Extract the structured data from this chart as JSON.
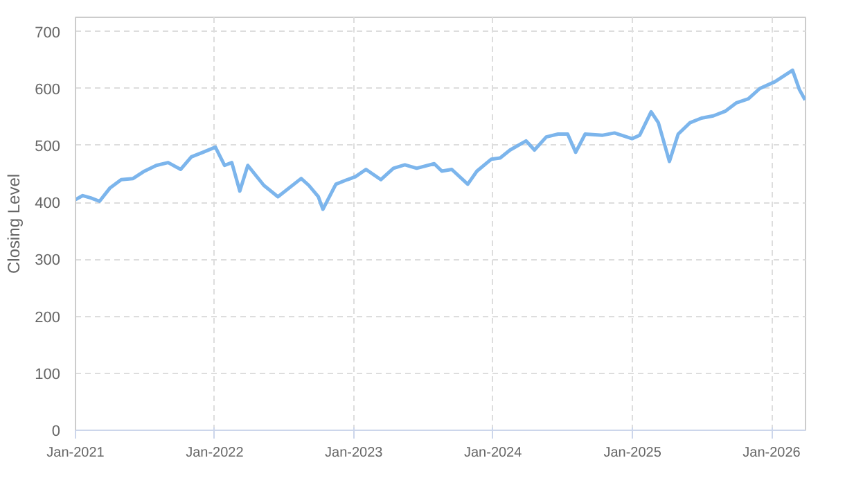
{
  "chart_data": {
    "type": "line",
    "ylabel": "Closing Level",
    "x": [
      "2021-01-01",
      "2021-01-20",
      "2021-02-10",
      "2021-03-05",
      "2021-04-01",
      "2021-05-01",
      "2021-06-01",
      "2021-07-01",
      "2021-08-01",
      "2021-09-01",
      "2021-10-04",
      "2021-11-01",
      "2021-12-01",
      "2022-01-03",
      "2022-01-27",
      "2022-02-15",
      "2022-03-08",
      "2022-03-29",
      "2022-05-10",
      "2022-06-16",
      "2022-08-16",
      "2022-09-05",
      "2022-09-30",
      "2022-10-12",
      "2022-11-15",
      "2022-12-15",
      "2023-01-05",
      "2023-02-02",
      "2023-03-13",
      "2023-04-15",
      "2023-05-15",
      "2023-06-15",
      "2023-07-31",
      "2023-08-20",
      "2023-09-15",
      "2023-10-27",
      "2023-11-20",
      "2023-12-28",
      "2024-01-20",
      "2024-02-15",
      "2024-03-28",
      "2024-04-19",
      "2024-05-20",
      "2024-06-20",
      "2024-07-15",
      "2024-08-05",
      "2024-08-30",
      "2024-10-15",
      "2024-11-15",
      "2024-12-31",
      "2025-01-20",
      "2025-02-19",
      "2025-03-10",
      "2025-04-08",
      "2025-05-01",
      "2025-06-01",
      "2025-07-01",
      "2025-08-01",
      "2025-09-01",
      "2025-10-01",
      "2025-11-01",
      "2025-12-01",
      "2026-01-10",
      "2026-02-25",
      "2026-03-15",
      "2026-03-30"
    ],
    "values": [
      405,
      412,
      408,
      402,
      425,
      440,
      442,
      455,
      465,
      470,
      458,
      480,
      488,
      497,
      465,
      470,
      420,
      465,
      430,
      410,
      442,
      430,
      410,
      388,
      432,
      440,
      445,
      458,
      440,
      460,
      466,
      460,
      468,
      455,
      458,
      432,
      455,
      476,
      478,
      492,
      508,
      492,
      515,
      520,
      520,
      488,
      520,
      518,
      522,
      512,
      518,
      559,
      540,
      472,
      520,
      540,
      548,
      552,
      560,
      575,
      582,
      600,
      612,
      632,
      598,
      580
    ],
    "color": "#7cb5ec",
    "xlim": [
      "2021-01-01",
      "2026-03-31"
    ],
    "xticks": [
      {
        "value": "2021-01-01",
        "label": "Jan-2021"
      },
      {
        "value": "2022-01-01",
        "label": "Jan-2022"
      },
      {
        "value": "2023-01-01",
        "label": "Jan-2023"
      },
      {
        "value": "2024-01-01",
        "label": "Jan-2024"
      },
      {
        "value": "2025-01-01",
        "label": "Jan-2025"
      },
      {
        "value": "2026-01-01",
        "label": "Jan-2026"
      }
    ],
    "ylim": [
      0,
      725
    ],
    "yticks": [
      0,
      100,
      200,
      300,
      400,
      500,
      600,
      700
    ],
    "grid": true
  }
}
